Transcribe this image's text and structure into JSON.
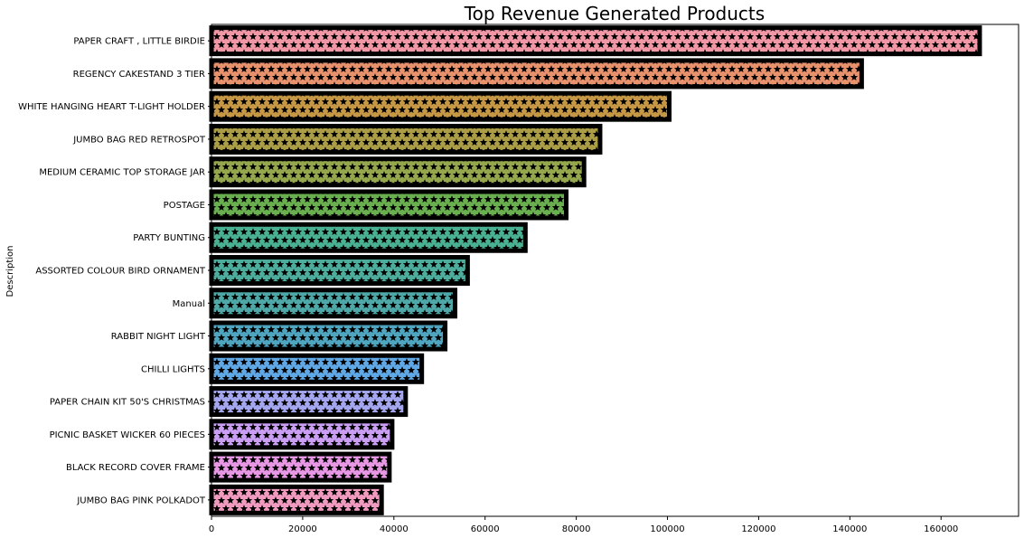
{
  "chart_data": {
    "type": "bar",
    "orientation": "horizontal",
    "title": "Top Revenue Generated Products",
    "ylabel": "Description",
    "xlabel": "",
    "xlim": [
      0,
      177000
    ],
    "xticks": [
      0,
      20000,
      40000,
      60000,
      80000,
      100000,
      120000,
      140000,
      160000
    ],
    "xtick_labels": [
      "0",
      "20000",
      "40000",
      "60000",
      "80000",
      "100000",
      "120000",
      "140000",
      "160000"
    ],
    "grid": false,
    "bar_pattern": "stars",
    "bar_edge_color": "#000000",
    "categories": [
      "PAPER CRAFT , LITTLE BIRDIE",
      "REGENCY CAKESTAND 3 TIER",
      "WHITE HANGING HEART T-LIGHT HOLDER",
      "JUMBO BAG RED RETROSPOT",
      "MEDIUM CERAMIC TOP STORAGE JAR",
      "POSTAGE",
      "PARTY BUNTING",
      "ASSORTED COLOUR BIRD ORNAMENT",
      "Manual",
      "RABBIT NIGHT LIGHT",
      "CHILLI LIGHTS",
      "PAPER CHAIN KIT 50'S CHRISTMAS",
      "PICNIC BASKET WICKER 60 PIECES",
      "BLACK RECORD COVER FRAME",
      "JUMBO BAG PINK POLKADOT"
    ],
    "values": [
      168470,
      142590,
      100390,
      85220,
      81700,
      77800,
      68840,
      56170,
      53420,
      51250,
      46120,
      42580,
      39620,
      39020,
      37300
    ],
    "colors": [
      "#f197a6",
      "#e8926d",
      "#c69845",
      "#ab9d46",
      "#95a74d",
      "#6aaf4f",
      "#4ab092",
      "#4cad9c",
      "#4ea8a8",
      "#4fa5bf",
      "#5fa8e5",
      "#a4a7f0",
      "#c99ef3",
      "#e797e4",
      "#f19ac0"
    ]
  }
}
